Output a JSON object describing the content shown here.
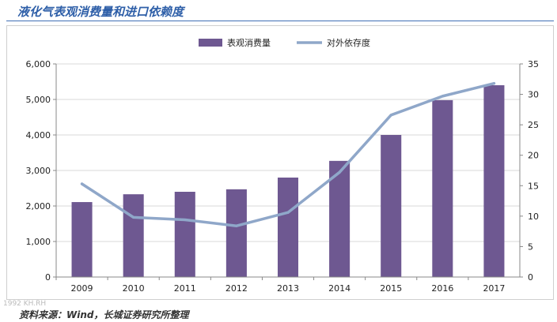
{
  "page": {
    "title": "液化气表观消费量和进口依赖度",
    "source": "资料来源：Wind，长城证券研究所整理",
    "watermark": "1992 KH.RH"
  },
  "colors": {
    "bar": "#6e5891",
    "line": "#8fa7c9",
    "title": "#2e5fa8",
    "grid": "#d9d9d9",
    "axis_text": "#222222"
  },
  "chart_data": {
    "type": "bar",
    "categories": [
      "2009",
      "2010",
      "2011",
      "2012",
      "2013",
      "2014",
      "2015",
      "2016",
      "2017"
    ],
    "series": [
      {
        "name": "表观消费量",
        "type": "bar",
        "axis": "left",
        "values": [
          2110,
          2330,
          2400,
          2470,
          2800,
          3270,
          4000,
          4980,
          5400
        ]
      },
      {
        "name": "对外依存度",
        "type": "line",
        "axis": "right",
        "values": [
          15.3,
          9.8,
          9.4,
          8.4,
          10.6,
          17.2,
          26.6,
          29.7,
          31.8
        ]
      }
    ],
    "y_left": {
      "min": 0,
      "max": 6000,
      "ticks": [
        "0",
        "1,000",
        "2,000",
        "3,000",
        "4,000",
        "5,000",
        "6,000"
      ]
    },
    "y_right": {
      "min": 0,
      "max": 35,
      "ticks": [
        "0",
        "5",
        "10",
        "15",
        "20",
        "25",
        "30",
        "35"
      ]
    },
    "grid": true,
    "legend_position": "top-center"
  }
}
